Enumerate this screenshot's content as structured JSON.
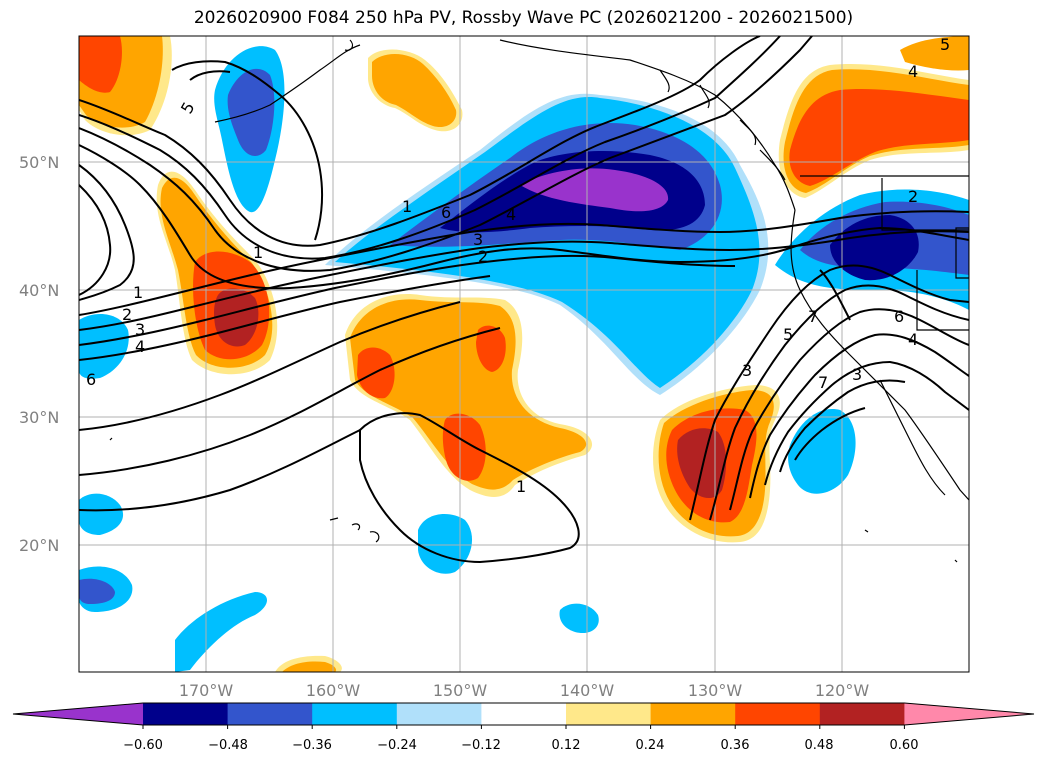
{
  "title": "2026020900 F084 250 hPa PV, Rossby Wave PC (2026021200 - 2026021500)",
  "lat_labels": [
    "50°N",
    "40°N",
    "30°N",
    "20°N"
  ],
  "lon_labels": [
    "170°W",
    "160°W",
    "150°W",
    "140°W",
    "130°W",
    "120°W"
  ],
  "colorbar": {
    "ticks": [
      "−0.60",
      "−0.48",
      "−0.36",
      "−0.24",
      "−0.12",
      "0.12",
      "0.24",
      "0.36",
      "0.48",
      "0.60"
    ],
    "colors": [
      "#9933cc",
      "#00008b",
      "#3355cc",
      "#00bfff",
      "#b0e0fa",
      "#ffffff",
      "#ffe88a",
      "#ffa500",
      "#ff4500",
      "#b22222",
      "#ff88aa"
    ]
  },
  "contour_labels": [
    "5",
    "1",
    "6",
    "4",
    "3",
    "2",
    "1",
    "2",
    "3",
    "4",
    "6",
    "1",
    "3",
    "5",
    "7",
    "6",
    "4",
    "1",
    "3",
    "2",
    "4",
    "5",
    "7"
  ]
}
